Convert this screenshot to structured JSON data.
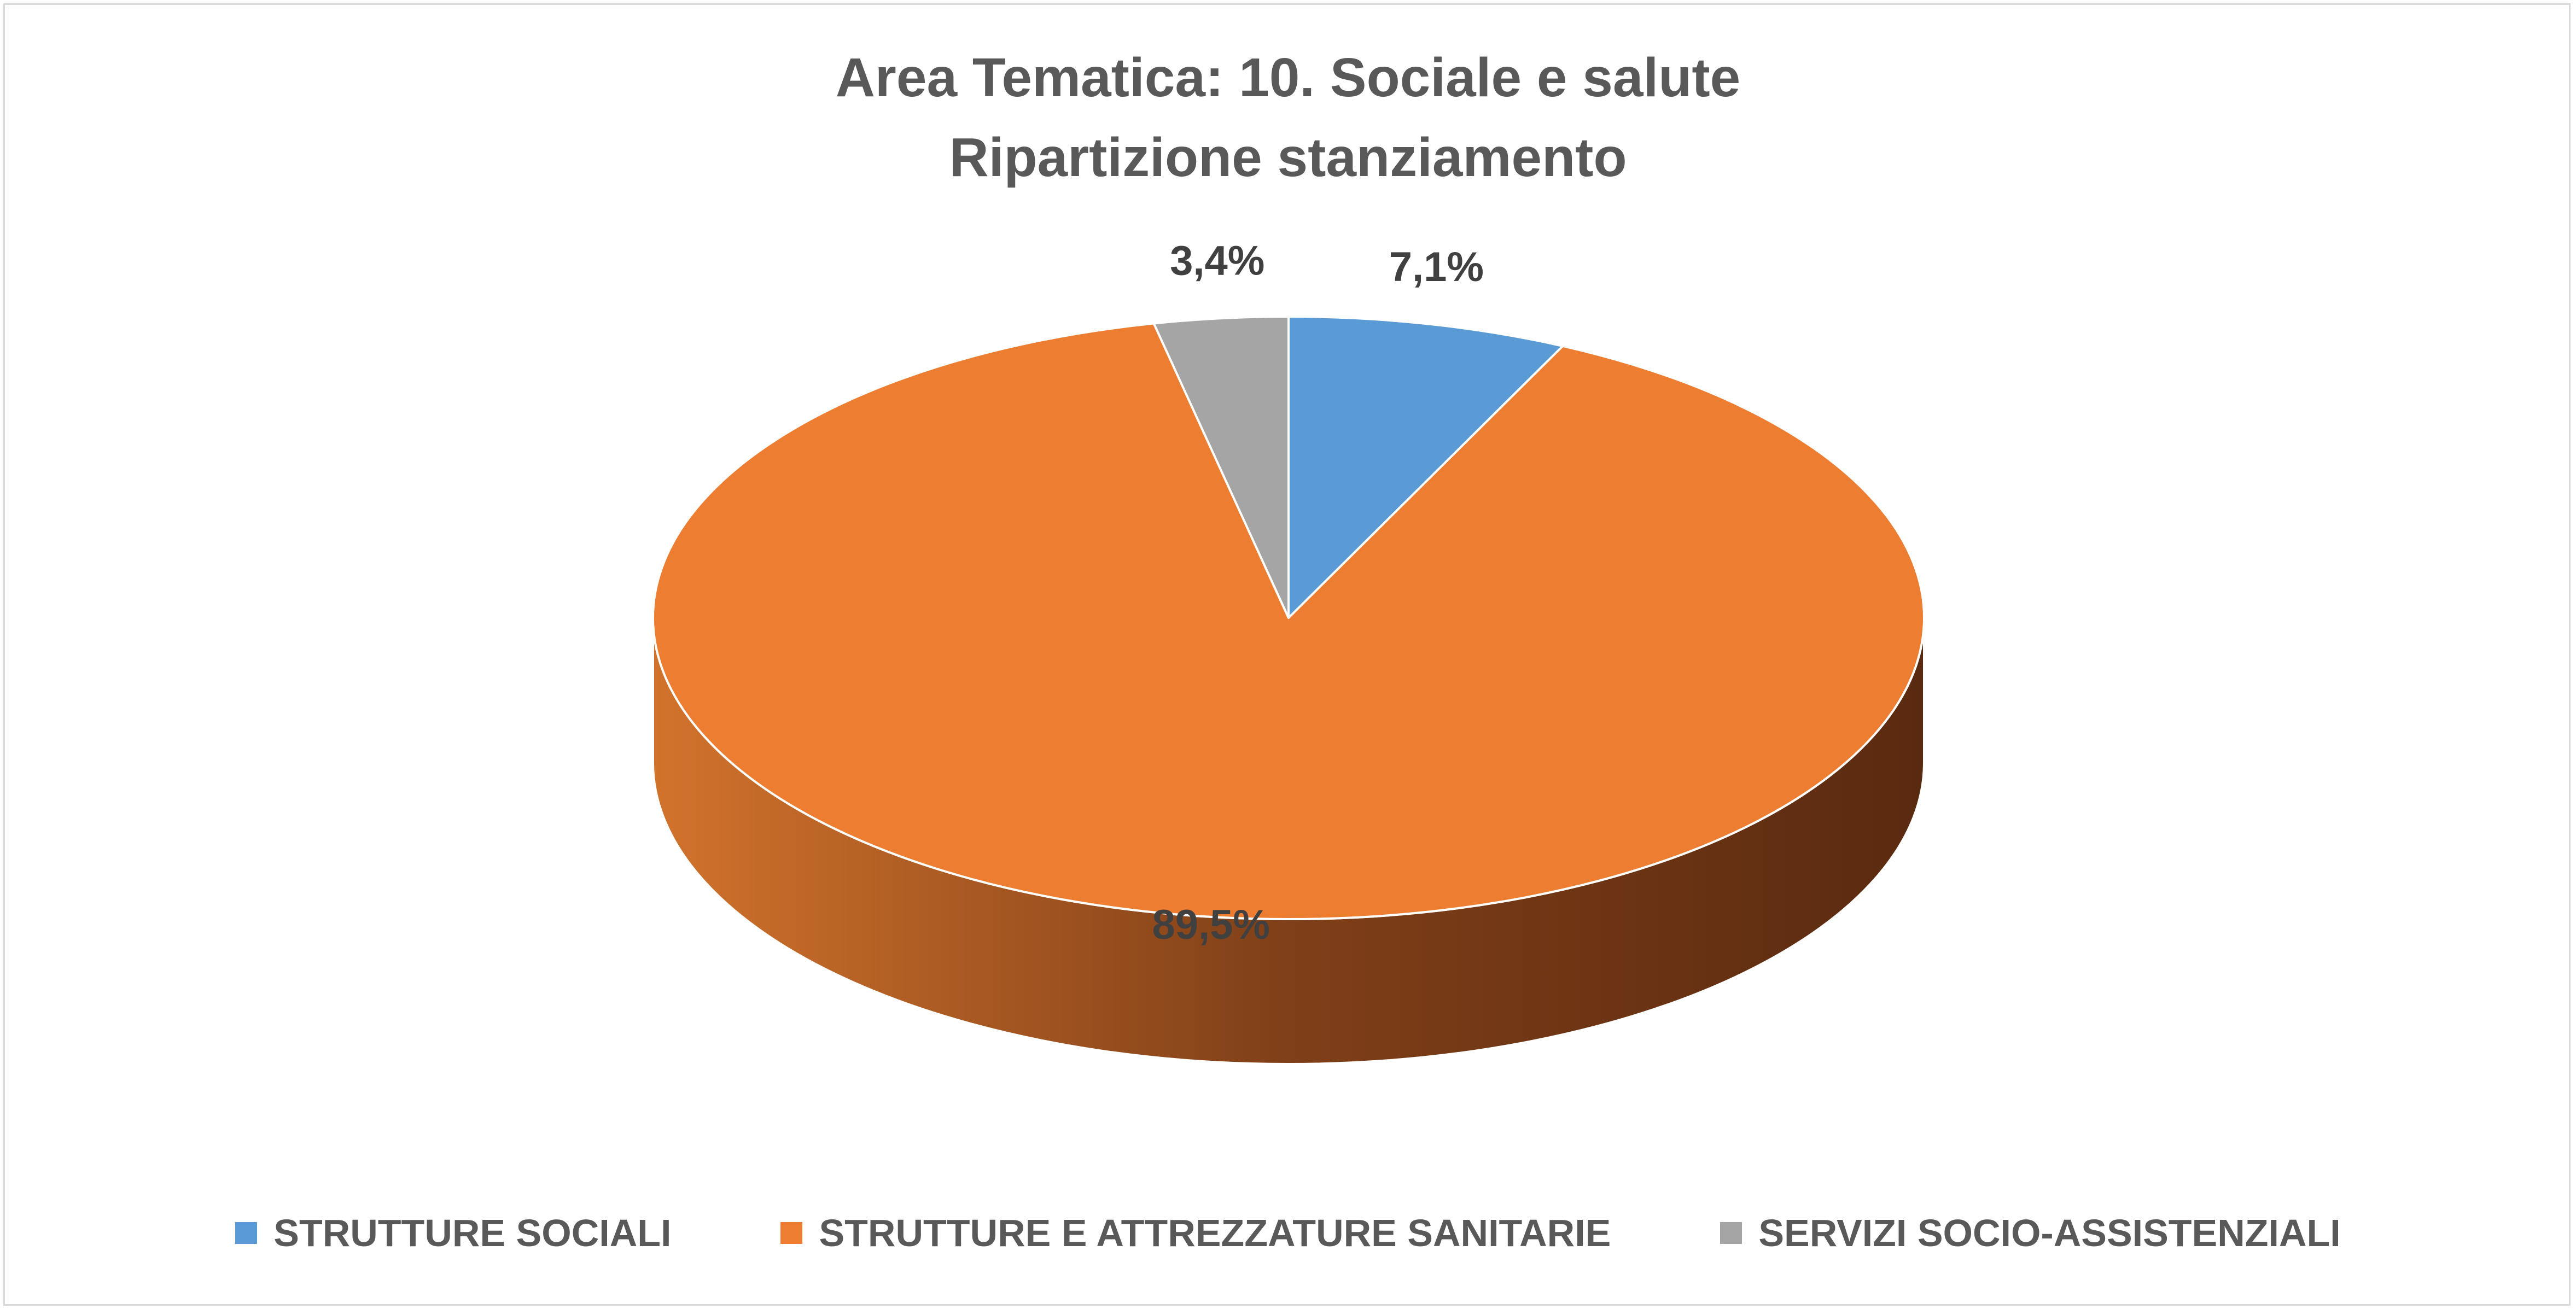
{
  "chart_data": {
    "type": "pie",
    "title": "Area Tematica: 10. Sociale e salute",
    "subtitle": "Ripartizione stanziamento",
    "unit": "%",
    "series": [
      {
        "name": "STRUTTURE SOCIALI",
        "value": 7.1,
        "label": "7,1%",
        "color": "#5b9bd5"
      },
      {
        "name": "STRUTTURE E ATTREZZATURE SANITARIE",
        "value": 89.5,
        "label": "89,5%",
        "color": "#ed7d31"
      },
      {
        "name": "SERVIZI SOCIO-ASSISTENZIALI",
        "value": 3.4,
        "label": "3,4%",
        "color": "#a5a5a5"
      }
    ],
    "legend_position": "bottom",
    "style": "3d"
  }
}
